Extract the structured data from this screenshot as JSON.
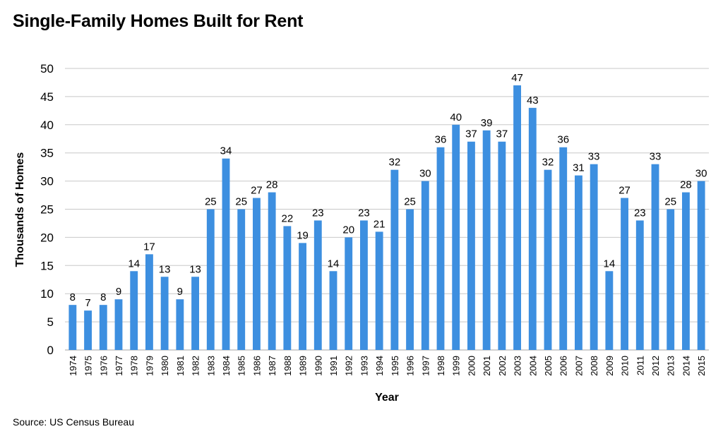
{
  "chart_data": {
    "type": "bar",
    "title": "Single-Family Homes Built for Rent",
    "xlabel": "Year",
    "ylabel": "Thousands of Homes",
    "source": "Source: US Census Bureau",
    "ylim": [
      0,
      50
    ],
    "yticks": [
      0,
      5,
      10,
      15,
      20,
      25,
      30,
      35,
      40,
      45,
      50
    ],
    "grid": true,
    "legend": "none",
    "bar_color": "#3d8fe0",
    "categories": [
      "1974",
      "1975",
      "1976",
      "1977",
      "1978",
      "1979",
      "1980",
      "1981",
      "1982",
      "1983",
      "1984",
      "1985",
      "1986",
      "1987",
      "1988",
      "1989",
      "1990",
      "1991",
      "1992",
      "1993",
      "1994",
      "1995",
      "1996",
      "1997",
      "1998",
      "1999",
      "2000",
      "2001",
      "2002",
      "2003",
      "2004",
      "2005",
      "2006",
      "2007",
      "2008",
      "2009",
      "2010",
      "2011",
      "2012",
      "2013",
      "2014",
      "2015"
    ],
    "values": [
      8,
      7,
      8,
      9,
      14,
      17,
      13,
      9,
      13,
      25,
      34,
      25,
      27,
      28,
      22,
      19,
      23,
      14,
      20,
      23,
      21,
      32,
      25,
      30,
      36,
      40,
      37,
      39,
      37,
      47,
      43,
      32,
      36,
      31,
      33,
      14,
      27,
      23,
      33,
      25,
      28,
      30
    ]
  }
}
